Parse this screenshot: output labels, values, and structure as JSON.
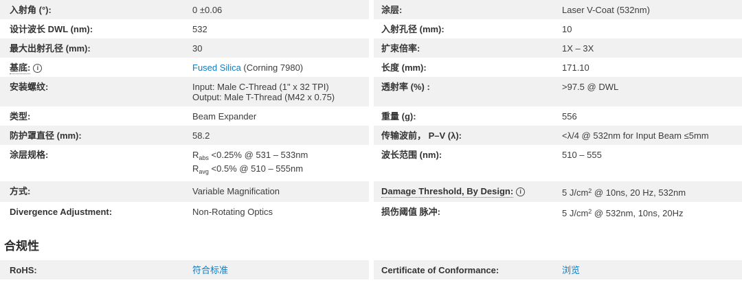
{
  "colors": {
    "stripe_gray": "#f1f1f1",
    "link_blue": "#0c7dc2",
    "label_text": "#333333",
    "value_text": "#3c3c3c"
  },
  "icons": {
    "info_glyph": "i"
  },
  "spec_rows": [
    {
      "left": {
        "label": "入射角 (°):",
        "value": [
          [
            {
              "text": "0 ±0.06"
            }
          ]
        ]
      },
      "right": {
        "label": "涂层:",
        "value": [
          [
            {
              "text": "Laser V-Coat (532nm)"
            }
          ]
        ]
      }
    },
    {
      "left": {
        "label": "设计波长 DWL (nm):",
        "value": [
          [
            {
              "text": "532"
            }
          ]
        ]
      },
      "right": {
        "label": "入射孔径 (mm):",
        "value": [
          [
            {
              "text": "10"
            }
          ]
        ]
      }
    },
    {
      "left": {
        "label": "最大出射孔径 (mm):",
        "value": [
          [
            {
              "text": "30"
            }
          ]
        ]
      },
      "right": {
        "label": "扩束倍率:",
        "value": [
          [
            {
              "text": "1X – 3X"
            }
          ]
        ]
      }
    },
    {
      "left": {
        "label": "基底:",
        "info": true,
        "value": [
          [
            {
              "text": "Fused Silica",
              "style": "link"
            },
            {
              "text": " (Corning 7980)"
            }
          ]
        ]
      },
      "right": {
        "label": "长度 (mm):",
        "value": [
          [
            {
              "text": "171.10"
            }
          ]
        ]
      }
    },
    {
      "left": {
        "label": "安装螺纹:",
        "value": [
          [
            {
              "text": "Input: Male C-Thread (1\" x 32 TPI)"
            }
          ],
          [
            {
              "text": "Output: Male T-Thread (M42 x 0.75)"
            }
          ]
        ]
      },
      "right": {
        "label": "透射率 (%) :",
        "value": [
          [
            {
              "text": ">97.5 @ DWL"
            }
          ]
        ]
      }
    },
    {
      "left": {
        "label": "类型:",
        "value": [
          [
            {
              "text": "Beam Expander"
            }
          ]
        ]
      },
      "right": {
        "label": "重量 (g):",
        "value": [
          [
            {
              "text": "556"
            }
          ]
        ]
      }
    },
    {
      "left": {
        "label": "防护罩直径 (mm):",
        "value": [
          [
            {
              "text": "58.2"
            }
          ]
        ]
      },
      "right": {
        "label": "传输波前， P–V (λ):",
        "value": [
          [
            {
              "text": "<λ/4 @ 532nm for Input Beam ≤5mm"
            }
          ]
        ]
      }
    },
    {
      "left": {
        "label": "涂层规格:",
        "value": [
          [
            {
              "text": "R"
            },
            {
              "text": "abs",
              "style": "sub"
            },
            {
              "text": " <0.25% @ 531 – 533nm"
            }
          ],
          [
            {
              "text": "R"
            },
            {
              "text": "avg",
              "style": "sub"
            },
            {
              "text": " <0.5% @ 510 – 555nm"
            }
          ]
        ]
      },
      "right": {
        "label": "波长范围 (nm):",
        "value": [
          [
            {
              "text": "510 – 555"
            }
          ]
        ]
      }
    },
    {
      "left": {
        "label": "方式:",
        "value": [
          [
            {
              "text": "Variable Magnification"
            }
          ]
        ]
      },
      "right": {
        "label": "Damage Threshold, By Design:",
        "info": true,
        "value": [
          [
            {
              "text": "5 J/cm"
            },
            {
              "text": "2",
              "style": "sup"
            },
            {
              "text": " @ 10ns, 20 Hz, 532nm"
            }
          ]
        ]
      }
    },
    {
      "left": {
        "label": "Divergence Adjustment:",
        "value": [
          [
            {
              "text": "Non-Rotating Optics"
            }
          ]
        ]
      },
      "right": {
        "label": "损伤阈值 脉冲:",
        "value": [
          [
            {
              "text": "5 J/cm"
            },
            {
              "text": "2",
              "style": "sup"
            },
            {
              "text": " @ 532nm, 10ns, 20Hz"
            }
          ]
        ]
      }
    }
  ],
  "compliance": {
    "heading": "合规性",
    "rows": [
      {
        "left": {
          "label": "RoHS:",
          "value": [
            [
              {
                "text": "符合标准",
                "style": "link"
              }
            ]
          ]
        },
        "right": {
          "label": "Certificate of Conformance:",
          "value": [
            [
              {
                "text": "浏览",
                "style": "link"
              }
            ]
          ]
        }
      }
    ]
  }
}
